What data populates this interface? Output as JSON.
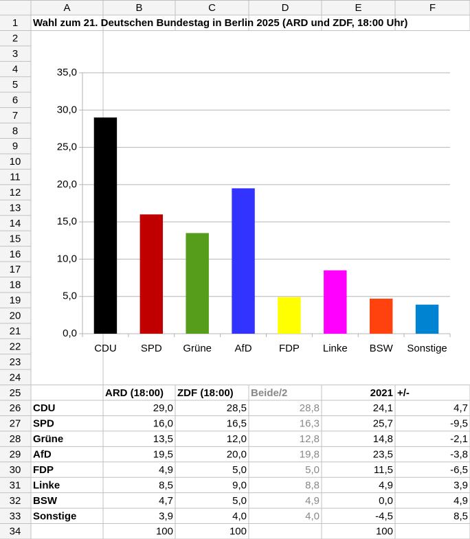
{
  "sheet": {
    "column_headers": [
      "A",
      "B",
      "C",
      "D",
      "E",
      "F"
    ],
    "row_headers": [
      1,
      2,
      3,
      4,
      5,
      6,
      7,
      8,
      9,
      10,
      11,
      12,
      13,
      14,
      15,
      16,
      17,
      18,
      19,
      20,
      21,
      22,
      23,
      24,
      25,
      26,
      27,
      28,
      29,
      30,
      31,
      32,
      33,
      34
    ]
  },
  "title": "Wahl zum 21. Deutschen Bundestag in Berlin 2025 (ARD und ZDF, 18:00 Uhr)",
  "chart_data": {
    "type": "bar",
    "categories": [
      "CDU",
      "SPD",
      "Grüne",
      "AfD",
      "FDP",
      "Linke",
      "BSW",
      "Sonstige"
    ],
    "values": [
      29.0,
      16.0,
      13.5,
      19.5,
      4.9,
      8.5,
      4.7,
      3.9
    ],
    "colors": [
      "#000000",
      "#c00000",
      "#579d1c",
      "#3333ff",
      "#ffff00",
      "#ff00ff",
      "#ff420e",
      "#0084d1"
    ],
    "ylim": [
      0,
      35
    ],
    "yticks": [
      {
        "value": 0,
        "label": "0,0"
      },
      {
        "value": 5,
        "label": "5,0"
      },
      {
        "value": 10,
        "label": "10,0"
      },
      {
        "value": 15,
        "label": "15,0"
      },
      {
        "value": 20,
        "label": "20,0"
      },
      {
        "value": 25,
        "label": "25,0"
      },
      {
        "value": 30,
        "label": "30,0"
      },
      {
        "value": 35,
        "label": "35,0"
      }
    ],
    "grid": true
  },
  "table": {
    "header": [
      "ARD (18:00)",
      "ZDF (18:00)",
      "Beide/2",
      "2021",
      "+/-"
    ],
    "rows": [
      [
        "CDU",
        "29,0",
        "28,5",
        "28,8",
        "24,1",
        "4,7"
      ],
      [
        "SPD",
        "16,0",
        "16,5",
        "16,3",
        "25,7",
        "-9,5"
      ],
      [
        "Grüne",
        "13,5",
        "12,0",
        "12,8",
        "14,8",
        "-2,1"
      ],
      [
        "AfD",
        "19,5",
        "20,0",
        "19,8",
        "23,5",
        "-3,8"
      ],
      [
        "FDP",
        "4,9",
        "5,0",
        "5,0",
        "11,5",
        "-6,5"
      ],
      [
        "Linke",
        "8,5",
        "9,0",
        "8,8",
        "4,9",
        "3,9"
      ],
      [
        "BSW",
        "4,7",
        "5,0",
        "4,9",
        "0,0",
        "4,9"
      ],
      [
        "Sonstige",
        "3,9",
        "4,0",
        "4,0",
        "-4,5",
        "8,5"
      ]
    ],
    "totals": [
      "100",
      "100",
      null,
      "100",
      null
    ]
  }
}
